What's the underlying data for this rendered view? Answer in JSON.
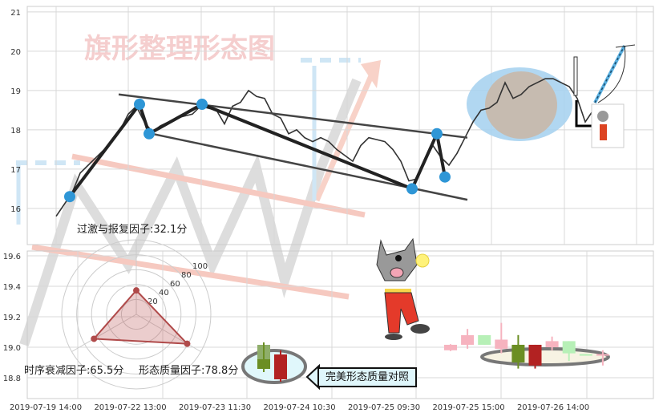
{
  "chart_data": [
    {
      "type": "line",
      "title": "旗形整理形态图",
      "yticks": [
        "21",
        "20",
        "19",
        "18",
        "17",
        "16"
      ],
      "ylim": [
        15.08,
        21.14
      ],
      "grid": true,
      "price_series": [
        15.8,
        16.1,
        16.4,
        16.9,
        17.1,
        17.3,
        17.5,
        17.7,
        18.0,
        18.4,
        18.6,
        18.2,
        17.95,
        18.1,
        18.2,
        18.3,
        18.35,
        18.4,
        18.6,
        18.55,
        18.5,
        18.15,
        18.6,
        18.7,
        19.0,
        18.85,
        18.8,
        18.4,
        18.3,
        17.9,
        18.0,
        17.8,
        17.7,
        17.8,
        17.7,
        17.5,
        17.35,
        17.2,
        17.6,
        17.8,
        17.75,
        17.7,
        17.5,
        17.2,
        16.7,
        16.75,
        17.2,
        17.6,
        17.3,
        17.1,
        17.4,
        17.8,
        18.2,
        18.5,
        18.55,
        18.7,
        19.2,
        18.8,
        18.9,
        19.1,
        19.2,
        19.3,
        19.3,
        19.2,
        19.1,
        18.8,
        18.2,
        18.5
      ],
      "pivots": [
        [
          1.7,
          16.3
        ],
        [
          10.4,
          18.65
        ],
        [
          11.6,
          17.9
        ],
        [
          18.2,
          18.65
        ],
        [
          44.4,
          16.5
        ],
        [
          47.5,
          17.9
        ],
        [
          48.5,
          16.8
        ]
      ],
      "trendlines": [
        {
          "from": [
            7.8,
            18.9
          ],
          "to": [
            51.3,
            17.8
          ]
        },
        {
          "from": [
            11,
            17.94
          ],
          "to": [
            51.3,
            16.22
          ]
        }
      ],
      "pivot_color": "#2e96d6",
      "line_color": "#333333"
    },
    {
      "type": "candlestick",
      "yticks": [
        "19.6",
        "19.4",
        "19.2",
        "19.0",
        "18.8"
      ],
      "ylim": [
        18.68,
        19.64
      ],
      "xticks": [
        "2019-07-19 14:00",
        "2019-07-22 13:00",
        "2019-07-23 11:30",
        "2019-07-24 10:30",
        "2019-07-25 09:30",
        "2019-07-25 15:00",
        "2019-07-26 14:00"
      ],
      "candles": [
        {
          "open": 18.98,
          "close": 19.016,
          "high": 19.02,
          "low": 18.975,
          "up": true,
          "highlight": false
        },
        {
          "open": 19.016,
          "close": 19.079,
          "high": 19.12,
          "low": 18.99,
          "up": true,
          "highlight": false
        },
        {
          "open": 19.079,
          "close": 19.016,
          "high": 19.079,
          "low": 19.016,
          "up": false,
          "highlight": false
        },
        {
          "open": 18.99,
          "close": 19.05,
          "high": 19.16,
          "low": 18.96,
          "up": true,
          "highlight": false
        },
        {
          "open": 19.016,
          "close": 18.9,
          "high": 19.08,
          "low": 18.86,
          "up": false,
          "highlight": true
        },
        {
          "open": 18.88,
          "close": 19.016,
          "high": 19.016,
          "low": 18.86,
          "up": true,
          "highlight": true
        },
        {
          "open": 19.0,
          "close": 19.04,
          "high": 19.07,
          "low": 18.98,
          "up": true,
          "highlight": false
        },
        {
          "open": 19.04,
          "close": 18.96,
          "high": 19.04,
          "low": 18.91,
          "up": false,
          "highlight": false
        },
        {
          "open": 18.955,
          "close": 18.945,
          "high": 18.955,
          "low": 18.945,
          "up": false,
          "highlight": false
        },
        {
          "open": 18.945,
          "close": 18.955,
          "high": 18.98,
          "low": 18.88,
          "up": true,
          "highlight": false
        }
      ],
      "up_color": "#b22222",
      "down_color": "#6b8e23"
    },
    {
      "type": "radar",
      "rings": [
        "20",
        "40",
        "60",
        "80",
        "100"
      ],
      "factors": [
        {
          "label": "过激与报复因子:32.1分",
          "value": 32.1
        },
        {
          "label": "时序衰减因子:65.5分",
          "value": 65.5
        },
        {
          "label": "形态质量因子:78.8分",
          "value": 78.8
        }
      ],
      "color": "#b04a4a"
    }
  ],
  "callout": {
    "text": "完美形态质量对照"
  }
}
